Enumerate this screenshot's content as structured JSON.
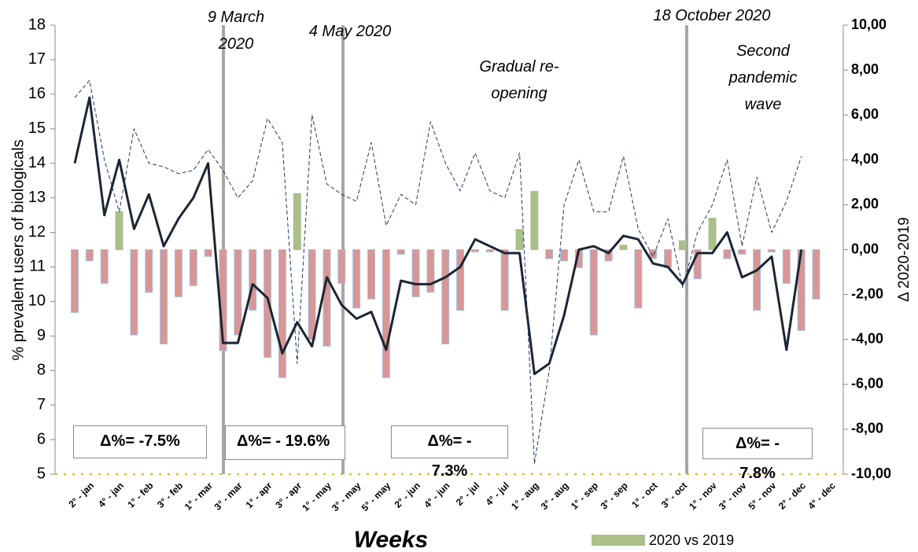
{
  "chart_data": {
    "type": "combo",
    "y_title": "% prevalent users of biologicals",
    "y2_title": "Δ 2020-2019",
    "x_title": "Weeks",
    "categories": [
      null,
      "2° - jan",
      null,
      "4° - jan",
      null,
      "1° - feb",
      null,
      "3° - feb",
      null,
      "1° - mar",
      null,
      "3° - mar",
      null,
      "1° - apr",
      null,
      "3° - apr",
      null,
      "1° - may",
      null,
      "3° - may",
      null,
      "5° - may",
      null,
      "2° - jun",
      null,
      "4° - jun",
      null,
      "2° - jul",
      null,
      "4° - jul",
      null,
      "1° - aug",
      null,
      "3° - aug",
      null,
      "1° - sep",
      null,
      "3° - sep",
      null,
      "1° - oct",
      null,
      "3° - oct",
      null,
      "1° - nov",
      null,
      "3° - nov",
      null,
      "5° - nov",
      null,
      "2° - dec",
      null,
      "4° - dec"
    ],
    "ylim": [
      5,
      18
    ],
    "yticks": [
      5,
      6,
      7,
      8,
      9,
      10,
      11,
      12,
      13,
      14,
      15,
      16,
      17,
      18
    ],
    "y2lim": [
      -10,
      10
    ],
    "y2ticks": [
      {
        "value": -10,
        "label": "-10,00"
      },
      {
        "value": -8,
        "label": "-8,00"
      },
      {
        "value": -6,
        "label": "-6,00"
      },
      {
        "value": -4,
        "label": "-4,00"
      },
      {
        "value": -2,
        "label": "-2,00"
      },
      {
        "value": 0,
        "label": "0,00"
      },
      {
        "value": 2,
        "label": "2,00"
      },
      {
        "value": 4,
        "label": "4,00"
      },
      {
        "value": 6,
        "label": "6,00"
      },
      {
        "value": 8,
        "label": "8,00"
      },
      {
        "value": 10,
        "label": "10,00"
      }
    ],
    "grid": false,
    "series": [
      {
        "type": "bar",
        "name": "2020 vs 2019",
        "axis": "y2",
        "color": "#a9c08a",
        "negative_color": "#d99694",
        "values": [
          -2.8,
          -0.5,
          -1.5,
          1.7,
          -3.8,
          -1.9,
          -4.2,
          -2.1,
          -1.6,
          -0.3,
          -4.5,
          -3.8,
          -2.7,
          -4.8,
          -5.7,
          2.5,
          -4.0,
          -4.3,
          -1.5,
          -2.6,
          -2.2,
          -5.7,
          -0.2,
          -2.1,
          -1.9,
          -4.2,
          -2.7,
          -0.1,
          -0.1,
          -2.7,
          0.9,
          2.6,
          -0.4,
          -0.5,
          -0.8,
          -3.8,
          -0.5,
          0.2,
          -2.6,
          -0.4,
          -0.8,
          0.4,
          -1.3,
          1.4,
          -0.4,
          -0.2,
          -2.7,
          -0.1,
          -1.5,
          -3.6,
          -2.2,
          0
        ]
      },
      {
        "type": "line",
        "color": "#1c2533",
        "width": 3,
        "dashed": false,
        "values": [
          14.0,
          15.9,
          12.5,
          14.1,
          12.1,
          13.1,
          11.6,
          12.4,
          13.0,
          14.0,
          8.8,
          8.8,
          10.5,
          10.1,
          8.5,
          9.4,
          8.7,
          10.7,
          9.9,
          9.5,
          9.7,
          8.6,
          10.6,
          10.5,
          10.5,
          10.7,
          11.0,
          11.8,
          11.6,
          11.4,
          11.4,
          7.9,
          8.2,
          9.6,
          11.5,
          11.6,
          11.4,
          11.9,
          11.8,
          11.1,
          11.0,
          10.5,
          11.4,
          11.4,
          12.0,
          10.7,
          10.9,
          11.3,
          8.6,
          11.5,
          null,
          null
        ]
      },
      {
        "type": "line",
        "color": "#1f3864",
        "width": 1,
        "dashed": true,
        "values": [
          15.9,
          16.4,
          14.1,
          12.6,
          15.0,
          14.0,
          13.9,
          13.7,
          13.8,
          14.4,
          13.8,
          13.0,
          13.5,
          15.3,
          14.6,
          8.2,
          15.4,
          13.4,
          13.1,
          12.9,
          14.6,
          12.2,
          13.1,
          12.8,
          15.2,
          14.0,
          13.2,
          14.3,
          13.2,
          13.0,
          14.3,
          5.3,
          8.0,
          12.8,
          14.1,
          12.6,
          12.6,
          14.2,
          12.1,
          11.3,
          12.4,
          10.4,
          12.0,
          12.8,
          14.1,
          11.6,
          13.6,
          12.0,
          12.9,
          14.2,
          null,
          null
        ]
      }
    ],
    "annotations": [
      "9 March 2020",
      "4 May 2020",
      "18 October 2020",
      "Gradual re-opening",
      "Second pandemic wave"
    ],
    "boxes": [
      "Δ%= -7.5%",
      "Δ%= - 19.6%",
      "Δ%= - 7.3%",
      "Δ%= - 7.8%"
    ]
  }
}
